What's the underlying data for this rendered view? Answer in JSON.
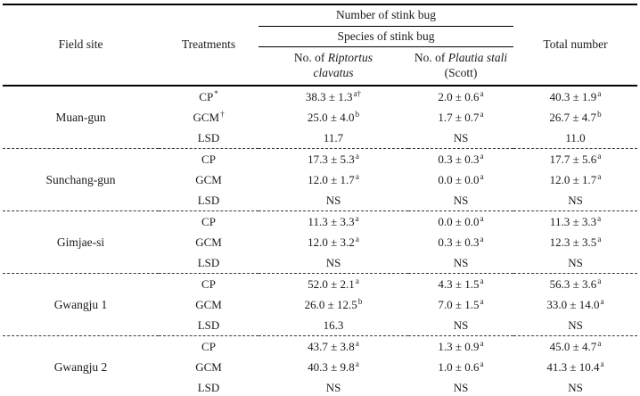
{
  "table": {
    "header": {
      "field_site": "Field site",
      "treatments": "Treatments",
      "number_of_stink_bug": "Number of stink bug",
      "species_of_stink_bug": "Species of stink bug",
      "no_of_prefix": "No. of ",
      "riptortus_species": "Riptortus clavatus",
      "plautia_species": "Plautia stali",
      "plautia_suffix": "(Scott)",
      "total_number": "Total number"
    },
    "groups": [
      {
        "site": "Muan-gun",
        "rows": [
          {
            "treatment": "CP",
            "treatment_sup": "*",
            "riptortus": "38.3 ± 1.3",
            "riptortus_sup": "a†",
            "plautia": "2.0 ± 0.6",
            "plautia_sup": "a",
            "total": "40.3 ± 1.9",
            "total_sup": "a"
          },
          {
            "treatment": "GCM",
            "treatment_sup": "†",
            "riptortus": "25.0 ± 4.0",
            "riptortus_sup": "b",
            "plautia": "1.7 ± 0.7",
            "plautia_sup": "a",
            "total": "26.7 ± 4.7",
            "total_sup": "b"
          },
          {
            "treatment": "LSD",
            "treatment_sup": "",
            "riptortus": "11.7",
            "riptortus_sup": "",
            "plautia": "NS",
            "plautia_sup": "",
            "total": "11.0",
            "total_sup": ""
          }
        ]
      },
      {
        "site": "Sunchang-gun",
        "rows": [
          {
            "treatment": "CP",
            "treatment_sup": "",
            "riptortus": "17.3 ± 5.3",
            "riptortus_sup": "a",
            "plautia": "0.3 ± 0.3",
            "plautia_sup": "a",
            "total": "17.7 ± 5.6",
            "total_sup": "a"
          },
          {
            "treatment": "GCM",
            "treatment_sup": "",
            "riptortus": "12.0 ± 1.7",
            "riptortus_sup": "a",
            "plautia": "0.0 ± 0.0",
            "plautia_sup": "a",
            "total": "12.0 ± 1.7",
            "total_sup": "a"
          },
          {
            "treatment": "LSD",
            "treatment_sup": "",
            "riptortus": "NS",
            "riptortus_sup": "",
            "plautia": "NS",
            "plautia_sup": "",
            "total": "NS",
            "total_sup": ""
          }
        ]
      },
      {
        "site": "Gimjae-si",
        "rows": [
          {
            "treatment": "CP",
            "treatment_sup": "",
            "riptortus": "11.3 ± 3.3",
            "riptortus_sup": "a",
            "plautia": "0.0 ± 0.0",
            "plautia_sup": "a",
            "total": "11.3 ± 3.3",
            "total_sup": "a"
          },
          {
            "treatment": "GCM",
            "treatment_sup": "",
            "riptortus": "12.0 ± 3.2",
            "riptortus_sup": "a",
            "plautia": "0.3 ± 0.3",
            "plautia_sup": "a",
            "total": "12.3 ± 3.5",
            "total_sup": "a"
          },
          {
            "treatment": "LSD",
            "treatment_sup": "",
            "riptortus": "NS",
            "riptortus_sup": "",
            "plautia": "NS",
            "plautia_sup": "",
            "total": "NS",
            "total_sup": ""
          }
        ]
      },
      {
        "site": "Gwangju 1",
        "rows": [
          {
            "treatment": "CP",
            "treatment_sup": "",
            "riptortus": "52.0 ± 2.1",
            "riptortus_sup": "a",
            "plautia": "4.3 ± 1.5",
            "plautia_sup": "a",
            "total": "56.3 ± 3.6",
            "total_sup": "a"
          },
          {
            "treatment": "GCM",
            "treatment_sup": "",
            "riptortus": "26.0 ± 12.5",
            "riptortus_sup": "b",
            "plautia": "7.0 ± 1.5",
            "plautia_sup": "a",
            "total": "33.0 ± 14.0",
            "total_sup": "a"
          },
          {
            "treatment": "LSD",
            "treatment_sup": "",
            "riptortus": "16.3",
            "riptortus_sup": "",
            "plautia": "NS",
            "plautia_sup": "",
            "total": "NS",
            "total_sup": ""
          }
        ]
      },
      {
        "site": "Gwangju 2",
        "rows": [
          {
            "treatment": "CP",
            "treatment_sup": "",
            "riptortus": "43.7 ± 3.8",
            "riptortus_sup": "a",
            "plautia": "1.3 ± 0.9",
            "plautia_sup": "a",
            "total": "45.0 ± 4.7",
            "total_sup": "a"
          },
          {
            "treatment": "GCM",
            "treatment_sup": "",
            "riptortus": "40.3 ± 9.8",
            "riptortus_sup": "a",
            "plautia": "1.0 ± 0.6",
            "plautia_sup": "a",
            "total": "41.3 ± 10.4",
            "total_sup": "a"
          },
          {
            "treatment": "LSD",
            "treatment_sup": "",
            "riptortus": "NS",
            "riptortus_sup": "",
            "plautia": "NS",
            "plautia_sup": "",
            "total": "NS",
            "total_sup": ""
          }
        ]
      }
    ]
  }
}
